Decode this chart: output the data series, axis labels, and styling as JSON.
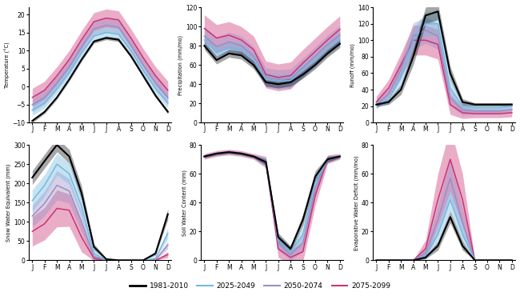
{
  "months": [
    "J",
    "F",
    "M",
    "A",
    "M",
    "J",
    "J",
    "A",
    "S",
    "O",
    "N",
    "D"
  ],
  "colors": {
    "1981-2010": "#000000",
    "2025-2049": "#74b9e0",
    "2050-2074": "#9b8ec4",
    "2075-2099": "#cc3377"
  },
  "shade_alphas": {
    "1981-2010": 0.35,
    "2025-2049": 0.4,
    "2050-2074": 0.4,
    "2075-2099": 0.4
  },
  "periods": [
    "1981-2010",
    "2025-2049",
    "2050-2074",
    "2075-2099"
  ],
  "temperature": {
    "mean": {
      "1981-2010": [
        -9.5,
        -7.0,
        -3.0,
        2.0,
        7.5,
        12.5,
        13.5,
        13.0,
        8.5,
        3.0,
        -2.5,
        -7.0
      ],
      "2025-2049": [
        -6.5,
        -4.5,
        -0.5,
        4.0,
        9.5,
        14.0,
        15.0,
        14.5,
        10.0,
        4.5,
        -0.5,
        -4.5
      ],
      "2050-2074": [
        -5.0,
        -3.0,
        1.0,
        5.5,
        11.0,
        16.0,
        17.0,
        16.5,
        11.5,
        6.0,
        1.0,
        -3.0
      ],
      "2075-2099": [
        -3.0,
        -1.0,
        3.0,
        7.5,
        13.0,
        18.0,
        19.0,
        18.5,
        13.5,
        8.0,
        3.0,
        -1.0
      ]
    },
    "shade": {
      "1981-2010": [
        0.5,
        0.5,
        0.5,
        0.5,
        0.5,
        0.5,
        0.5,
        0.5,
        0.5,
        0.5,
        0.5,
        0.5
      ],
      "2025-2049": [
        1.5,
        1.5,
        1.5,
        1.5,
        1.5,
        1.5,
        1.5,
        1.5,
        1.5,
        1.5,
        1.5,
        1.5
      ],
      "2050-2074": [
        2.0,
        2.0,
        2.0,
        2.0,
        2.0,
        2.0,
        2.0,
        2.0,
        2.0,
        2.0,
        2.0,
        2.0
      ],
      "2075-2099": [
        2.5,
        2.5,
        2.5,
        2.5,
        2.5,
        2.5,
        2.5,
        2.5,
        2.5,
        2.5,
        2.5,
        2.5
      ]
    },
    "ylim": [
      -10,
      22
    ],
    "yticks": [
      -10,
      -5,
      0,
      5,
      10,
      15,
      20
    ],
    "ylabel": "Temperature (°C)"
  },
  "precipitation": {
    "mean": {
      "1981-2010": [
        80,
        65,
        72,
        70,
        60,
        42,
        40,
        42,
        50,
        60,
        72,
        82
      ],
      "2025-2049": [
        86,
        73,
        78,
        76,
        65,
        45,
        43,
        44,
        54,
        65,
        77,
        87
      ],
      "2050-2074": [
        90,
        79,
        84,
        80,
        69,
        47,
        45,
        46,
        57,
        69,
        81,
        91
      ],
      "2075-2099": [
        98,
        88,
        91,
        86,
        76,
        50,
        47,
        49,
        62,
        74,
        86,
        97
      ]
    },
    "shade": {
      "1981-2010": [
        4,
        4,
        4,
        4,
        4,
        4,
        4,
        4,
        4,
        4,
        4,
        4
      ],
      "2025-2049": [
        7,
        7,
        7,
        7,
        7,
        7,
        7,
        7,
        7,
        7,
        7,
        7
      ],
      "2050-2074": [
        10,
        10,
        10,
        10,
        10,
        10,
        10,
        10,
        10,
        10,
        10,
        10
      ],
      "2075-2099": [
        14,
        14,
        14,
        14,
        14,
        14,
        14,
        14,
        14,
        14,
        14,
        14
      ]
    },
    "ylim": [
      0,
      120
    ],
    "yticks": [
      0,
      20,
      40,
      60,
      80,
      100,
      120
    ],
    "ylabel": "Precipitation (mm/mo)"
  },
  "runoff": {
    "mean": {
      "1981-2010": [
        22,
        25,
        40,
        80,
        130,
        135,
        60,
        25,
        22,
        22,
        22,
        22
      ],
      "2025-2049": [
        22,
        28,
        55,
        100,
        120,
        120,
        42,
        20,
        18,
        18,
        18,
        20
      ],
      "2050-2074": [
        22,
        35,
        65,
        105,
        112,
        105,
        30,
        15,
        14,
        14,
        14,
        16
      ],
      "2075-2099": [
        25,
        42,
        70,
        100,
        100,
        95,
        22,
        12,
        11,
        11,
        11,
        12
      ]
    },
    "shade": {
      "1981-2010": [
        2,
        3,
        6,
        10,
        10,
        10,
        8,
        4,
        2,
        2,
        2,
        2
      ],
      "2025-2049": [
        4,
        5,
        10,
        14,
        14,
        14,
        10,
        5,
        4,
        4,
        4,
        4
      ],
      "2050-2074": [
        5,
        7,
        12,
        16,
        16,
        16,
        10,
        6,
        4,
        4,
        4,
        4
      ],
      "2075-2099": [
        7,
        10,
        14,
        18,
        18,
        18,
        12,
        7,
        5,
        5,
        5,
        5
      ]
    },
    "ylim": [
      0,
      140
    ],
    "yticks": [
      0,
      20,
      40,
      60,
      80,
      100,
      120,
      140
    ],
    "ylabel": "Runoff (mm/mo)"
  },
  "swe": {
    "mean": {
      "1981-2010": [
        215,
        258,
        300,
        270,
        175,
        35,
        3,
        0,
        0,
        0,
        18,
        120
      ],
      "2025-2049": [
        155,
        195,
        250,
        225,
        140,
        18,
        0,
        0,
        0,
        0,
        5,
        70
      ],
      "2050-2074": [
        115,
        148,
        195,
        180,
        100,
        10,
        0,
        0,
        0,
        0,
        1,
        40
      ],
      "2075-2099": [
        75,
        95,
        135,
        130,
        60,
        5,
        0,
        0,
        0,
        0,
        0,
        15
      ]
    },
    "shade": {
      "1981-2010": [
        18,
        18,
        18,
        18,
        18,
        8,
        2,
        0,
        0,
        0,
        5,
        14
      ],
      "2025-2049": [
        28,
        28,
        28,
        28,
        28,
        10,
        1,
        0,
        0,
        0,
        3,
        14
      ],
      "2050-2074": [
        28,
        32,
        38,
        32,
        28,
        8,
        1,
        0,
        0,
        0,
        1,
        10
      ],
      "2075-2099": [
        38,
        42,
        48,
        42,
        38,
        6,
        1,
        0,
        0,
        0,
        0,
        8
      ]
    },
    "ylim": [
      0,
      300
    ],
    "yticks": [
      0,
      50,
      100,
      150,
      200,
      250,
      300
    ],
    "ylabel": "Snow Water Equivalent (mm)"
  },
  "swc": {
    "mean": {
      "1981-2010": [
        72,
        74,
        75,
        74,
        72,
        68,
        16,
        8,
        28,
        58,
        70,
        72
      ],
      "2025-2049": [
        72,
        74,
        75,
        74,
        72,
        68,
        14,
        6,
        18,
        54,
        70,
        72
      ],
      "2050-2074": [
        72,
        74,
        75,
        74,
        72,
        68,
        12,
        4,
        12,
        50,
        70,
        72
      ],
      "2075-2099": [
        72,
        74,
        75,
        74,
        72,
        68,
        8,
        2,
        6,
        45,
        70,
        72
      ]
    },
    "shade": {
      "1981-2010": [
        1,
        1,
        1,
        1,
        1,
        2,
        3,
        2,
        4,
        4,
        2,
        1
      ],
      "2025-2049": [
        1,
        1,
        1,
        1,
        1,
        3,
        4,
        3,
        5,
        5,
        2,
        1
      ],
      "2050-2074": [
        1,
        1,
        1,
        1,
        1,
        3,
        5,
        4,
        6,
        6,
        2,
        1
      ],
      "2075-2099": [
        2,
        2,
        2,
        2,
        2,
        4,
        6,
        5,
        7,
        7,
        3,
        2
      ]
    },
    "ylim": [
      0,
      80
    ],
    "yticks": [
      0,
      20,
      40,
      60,
      80
    ],
    "ylabel": "Soil Water Content (mm)"
  },
  "ewd": {
    "mean": {
      "1981-2010": [
        0,
        0,
        0,
        0,
        2,
        10,
        30,
        10,
        0,
        0,
        0,
        0
      ],
      "2025-2049": [
        0,
        0,
        0,
        0,
        3,
        18,
        42,
        18,
        0,
        0,
        0,
        0
      ],
      "2050-2074": [
        0,
        0,
        0,
        0,
        5,
        28,
        57,
        26,
        0,
        0,
        0,
        0
      ],
      "2075-2099": [
        0,
        0,
        0,
        0,
        8,
        42,
        70,
        42,
        0,
        0,
        0,
        0
      ]
    },
    "shade": {
      "1981-2010": [
        0,
        0,
        0,
        0,
        1,
        3,
        4,
        3,
        0,
        0,
        0,
        0
      ],
      "2025-2049": [
        0,
        0,
        0,
        0,
        2,
        6,
        8,
        6,
        0,
        0,
        0,
        0
      ],
      "2050-2074": [
        0,
        0,
        0,
        0,
        4,
        10,
        14,
        10,
        0,
        0,
        0,
        0
      ],
      "2075-2099": [
        0,
        0,
        0,
        0,
        6,
        18,
        22,
        18,
        0,
        0,
        0,
        0
      ]
    },
    "ylim": [
      0,
      80
    ],
    "yticks": [
      0,
      20,
      40,
      60,
      80
    ],
    "ylabel": "Evaporative Water Deficit (mm/mo)"
  }
}
